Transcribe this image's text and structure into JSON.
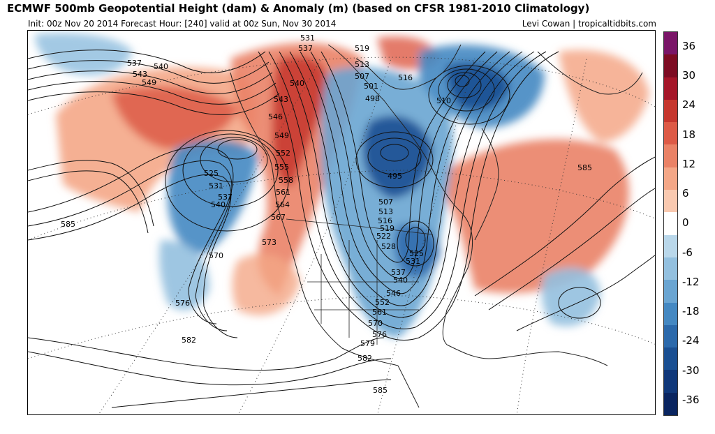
{
  "header": {
    "title": "ECMWF 500mb Geopotential Height (dam) & Anomaly (m) (based on CFSR 1981-2010 Climatology)",
    "init_info": "Init: 00z Nov 20 2014   Forecast Hour: [240]   valid at 00z Sun, Nov 30 2014",
    "credit": "Levi Cowan | tropicaltidbits.com"
  },
  "colorbar": {
    "labels": [
      "36",
      "30",
      "24",
      "18",
      "12",
      "6",
      "0",
      "-6",
      "-12",
      "-18",
      "-24",
      "-30",
      "-36"
    ],
    "colors": [
      "#7a1568",
      "#7d0c23",
      "#a51629",
      "#c6372e",
      "#dd5a46",
      "#ea8266",
      "#f4a787",
      "#f9c9b0",
      "#ffffff",
      "#b9d7ea",
      "#93c0df",
      "#6aa5d2",
      "#4488c2",
      "#2b69ab",
      "#1a4f92",
      "#10387a",
      "#0a2560"
    ]
  },
  "contour_labels": [
    "537",
    "540",
    "543",
    "549",
    "531",
    "537",
    "519",
    "513",
    "507",
    "501",
    "498",
    "516",
    "510",
    "540",
    "543",
    "546",
    "549",
    "552",
    "555",
    "558",
    "561",
    "564",
    "567",
    "525",
    "531",
    "537",
    "540",
    "495",
    "507",
    "513",
    "516",
    "519",
    "522",
    "528",
    "525",
    "531",
    "537",
    "540",
    "546",
    "552",
    "561",
    "570",
    "576",
    "579",
    "582",
    "582",
    "585",
    "585",
    "585",
    "570",
    "573",
    "576"
  ]
}
